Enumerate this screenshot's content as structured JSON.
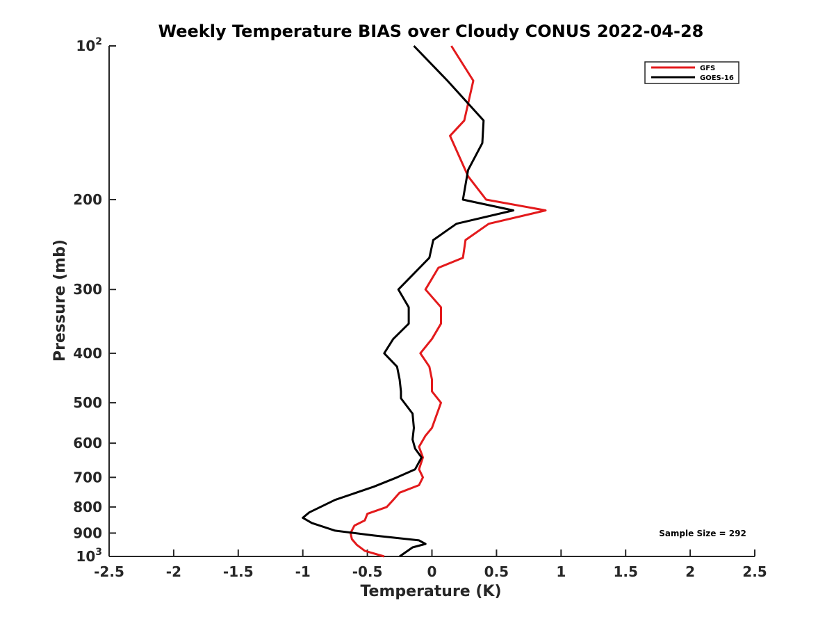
{
  "chart_data": {
    "type": "line",
    "title": "Weekly Temperature BIAS over Cloudy CONUS 2022-04-28",
    "xlabel": "Temperature (K)",
    "ylabel": "Pressure (mb)",
    "xlim": [
      -2.5,
      2.5
    ],
    "ylim": [
      100,
      1000
    ],
    "yscale": "log",
    "y_reversed": true,
    "grid": false,
    "legend_position": "top-right",
    "annotation": "Sample Size = 292",
    "x_ticks": [
      {
        "value": -2.5,
        "label": "-2.5"
      },
      {
        "value": -2,
        "label": "-2"
      },
      {
        "value": -1.5,
        "label": "-1.5"
      },
      {
        "value": -1,
        "label": "-1"
      },
      {
        "value": -0.5,
        "label": "-0.5"
      },
      {
        "value": 0,
        "label": "0"
      },
      {
        "value": 0.5,
        "label": "0.5"
      },
      {
        "value": 1,
        "label": "1"
      },
      {
        "value": 1.5,
        "label": "1.5"
      },
      {
        "value": 2,
        "label": "2"
      },
      {
        "value": 2.5,
        "label": "2.5"
      }
    ],
    "y_ticks": [
      {
        "value": 100,
        "label": "10",
        "sup": "2"
      },
      {
        "value": 200,
        "label": "200"
      },
      {
        "value": 300,
        "label": "300"
      },
      {
        "value": 400,
        "label": "400"
      },
      {
        "value": 500,
        "label": "500"
      },
      {
        "value": 600,
        "label": "600"
      },
      {
        "value": 700,
        "label": "700"
      },
      {
        "value": 800,
        "label": "800"
      },
      {
        "value": 900,
        "label": "900"
      },
      {
        "value": 1000,
        "label": "10",
        "sup": "3"
      }
    ],
    "series": [
      {
        "name": "GFS",
        "color": "#e31a1c",
        "points": [
          [
            0.15,
            100
          ],
          [
            0.32,
            117
          ],
          [
            0.25,
            140
          ],
          [
            0.14,
            150
          ],
          [
            0.28,
            180
          ],
          [
            0.42,
            200
          ],
          [
            0.88,
            210
          ],
          [
            0.44,
            223
          ],
          [
            0.26,
            240
          ],
          [
            0.24,
            260
          ],
          [
            0.05,
            272
          ],
          [
            -0.05,
            300
          ],
          [
            0.07,
            325
          ],
          [
            0.07,
            350
          ],
          [
            0.0,
            375
          ],
          [
            -0.09,
            400
          ],
          [
            -0.02,
            425
          ],
          [
            0.0,
            450
          ],
          [
            0.0,
            475
          ],
          [
            0.07,
            500
          ],
          [
            0.04,
            525
          ],
          [
            0.0,
            560
          ],
          [
            -0.05,
            580
          ],
          [
            -0.1,
            610
          ],
          [
            -0.07,
            640
          ],
          [
            -0.1,
            675
          ],
          [
            -0.07,
            700
          ],
          [
            -0.1,
            725
          ],
          [
            -0.25,
            750
          ],
          [
            -0.3,
            775
          ],
          [
            -0.35,
            800
          ],
          [
            -0.5,
            825
          ],
          [
            -0.52,
            850
          ],
          [
            -0.6,
            870
          ],
          [
            -0.63,
            900
          ],
          [
            -0.62,
            925
          ],
          [
            -0.58,
            950
          ],
          [
            -0.52,
            975
          ],
          [
            -0.37,
            1000
          ]
        ]
      },
      {
        "name": "GOES-16",
        "color": "#000000",
        "points": [
          [
            -0.14,
            100
          ],
          [
            0.12,
            117
          ],
          [
            0.4,
            140
          ],
          [
            0.39,
            155
          ],
          [
            0.28,
            175
          ],
          [
            0.24,
            200
          ],
          [
            0.63,
            210
          ],
          [
            0.19,
            223
          ],
          [
            0.01,
            240
          ],
          [
            -0.02,
            260
          ],
          [
            -0.26,
            300
          ],
          [
            -0.18,
            325
          ],
          [
            -0.18,
            350
          ],
          [
            -0.3,
            375
          ],
          [
            -0.37,
            400
          ],
          [
            -0.27,
            425
          ],
          [
            -0.25,
            450
          ],
          [
            -0.24,
            475
          ],
          [
            -0.24,
            490
          ],
          [
            -0.15,
            525
          ],
          [
            -0.14,
            560
          ],
          [
            -0.15,
            590
          ],
          [
            -0.13,
            615
          ],
          [
            -0.08,
            640
          ],
          [
            -0.13,
            675
          ],
          [
            -0.27,
            700
          ],
          [
            -0.45,
            730
          ],
          [
            -0.75,
            775
          ],
          [
            -0.95,
            820
          ],
          [
            -1.0,
            840
          ],
          [
            -0.93,
            860
          ],
          [
            -0.75,
            890
          ],
          [
            -0.45,
            910
          ],
          [
            -0.1,
            930
          ],
          [
            -0.05,
            945
          ],
          [
            -0.15,
            960
          ],
          [
            -0.25,
            1000
          ]
        ]
      }
    ]
  }
}
